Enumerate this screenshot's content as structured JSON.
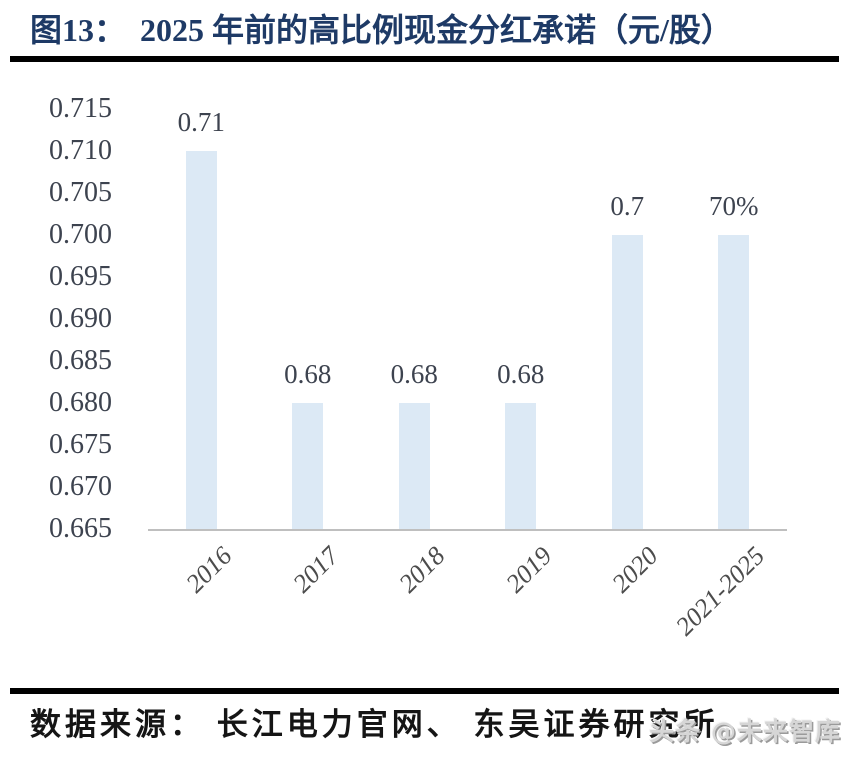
{
  "figure": {
    "label": "图13：",
    "title": "2025 年前的高比例现金分红承诺（元/股）"
  },
  "chart_data": {
    "type": "bar",
    "title": "2025 年前的高比例现金分红承诺（元/股）",
    "categories": [
      "2016",
      "2017",
      "2018",
      "2019",
      "2020",
      "2021-2025"
    ],
    "values": [
      0.71,
      0.68,
      0.68,
      0.68,
      0.7,
      0.7
    ],
    "bar_labels": [
      "0.71",
      "0.68",
      "0.68",
      "0.68",
      "0.7",
      "70%"
    ],
    "xlabel": "",
    "ylabel": "",
    "ylim": [
      0.665,
      0.715
    ],
    "ytick_step": 0.005,
    "ytick_values": [
      0.715,
      0.71,
      0.705,
      0.7,
      0.695,
      0.69,
      0.685,
      0.68,
      0.675,
      0.67,
      0.665
    ],
    "ytick_labels": [
      "0.715",
      "0.710",
      "0.705",
      "0.700",
      "0.695",
      "0.690",
      "0.685",
      "0.680",
      "0.675",
      "0.670",
      "0.665"
    ],
    "grid": false,
    "legend": "none",
    "bar_color": "#dce9f5",
    "axis_line_color": "#bfbfbf",
    "category_label_rotation_deg": 45
  },
  "footer": {
    "source": "数据来源： 长江电力官网、 东吴证券研究所",
    "watermark": "头条 @未来智库"
  },
  "colors": {
    "background": "#ffffff",
    "title_text": "#1e3a66",
    "divider": "#000000",
    "tick_text": "#3d434f",
    "value_label_text": "#3d434f",
    "category_label_text": "#4c4c4c",
    "source_text": "#151515",
    "watermark_text": "#9a9a9a"
  }
}
